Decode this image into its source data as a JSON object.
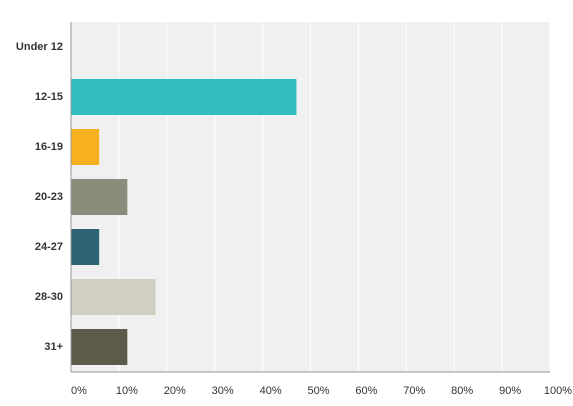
{
  "chart_data": {
    "type": "bar",
    "orientation": "horizontal",
    "categories": [
      "Under 12",
      "12-15",
      "16-19",
      "20-23",
      "24-27",
      "28-30",
      "31+"
    ],
    "values": [
      0,
      47.06,
      5.88,
      11.76,
      5.88,
      17.65,
      11.76
    ],
    "colors": [
      "#33bdbe",
      "#33bdbe",
      "#f7b11e",
      "#8b8c7a",
      "#2f6473",
      "#d1d0c0",
      "#5c5a48"
    ],
    "xlim": [
      0,
      100
    ],
    "xticks": [
      {
        "value": 0,
        "label": "0%"
      },
      {
        "value": 10,
        "label": "10%"
      },
      {
        "value": 20,
        "label": "20%"
      },
      {
        "value": 30,
        "label": "30%"
      },
      {
        "value": 40,
        "label": "40%"
      },
      {
        "value": 50,
        "label": "50%"
      },
      {
        "value": 60,
        "label": "60%"
      },
      {
        "value": 70,
        "label": "70%"
      },
      {
        "value": 80,
        "label": "80%"
      },
      {
        "value": 90,
        "label": "90%"
      },
      {
        "value": 100,
        "label": "100%"
      }
    ],
    "grid": true
  }
}
